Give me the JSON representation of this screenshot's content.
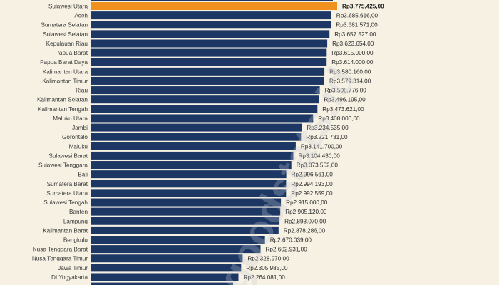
{
  "chart_data": {
    "type": "bar",
    "orientation": "horizontal",
    "title": "",
    "xlabel": "",
    "ylabel": "",
    "grid": false,
    "xlim": [
      0,
      3900000
    ],
    "bar_color": "#1c3764",
    "highlight_color": "#f0901e",
    "highlight_category": "Sulawesi Utara",
    "watermark": "goodstats.id",
    "categories": [
      "Sulawesi Utara",
      "Aceh",
      "Sumatera Selatan",
      "Sulawesi Selatan",
      "Kepulauan Riau",
      "Papua Barat",
      "Papua Barat Daya",
      "Kalimantan Utara",
      "Kalimantan Timur",
      "Riau",
      "Kalimantan Selatan",
      "Kalimantan Tengah",
      "Maluku Utara",
      "Jambi",
      "Gorontalo",
      "Maluku",
      "Sulawesi Barat",
      "Sulawesi Tenggara",
      "Bali",
      "Sumatera Barat",
      "Sumatera Utara",
      "Sulawesi Tengah",
      "Banten",
      "Lampung",
      "Kalimantan Barat",
      "Bengkulu",
      "Nusa Tenggara Barat",
      "Nusa Tenggara Timur",
      "Jawa Timur",
      "DI Yogyakarta"
    ],
    "values": [
      3775425,
      3685616,
      3681571,
      3657527,
      3623654,
      3615000,
      3614000,
      3580160,
      3579314,
      3508776,
      3496195,
      3473621,
      3408000,
      3234535,
      3221731,
      3141700,
      3104430,
      3073552,
      2996561,
      2994193,
      2992559,
      2915000,
      2905120,
      2893070,
      2878286,
      2670039,
      2602931,
      2328970,
      2305985,
      2264081
    ],
    "value_labels": [
      "Rp3.775.425,00",
      "Rp3.685.616,00",
      "Rp3.681.571,00",
      "Rp3.657.527,00",
      "Rp3.623.654,00",
      "Rp3.615.000,00",
      "Rp3.614.000,00",
      "Rp3.580.160,00",
      "Rp3.579.314,00",
      "Rp3.508.776,00",
      "Rp3.496.195,00",
      "Rp3.473.621,00",
      "Rp3.408.000,00",
      "Rp3.234.535,00",
      "Rp3.221.731,00",
      "Rp3.141.700,00",
      "Rp3.104.430,00",
      "Rp3.073.552,00",
      "Rp2.996.561,00",
      "Rp2.994.193,00",
      "Rp2.992.559,00",
      "Rp2.915.000,00",
      "Rp2.905.120,00",
      "Rp2.893.070,00",
      "Rp2.878.286,00",
      "Rp2.670.039,00",
      "Rp2.602.931,00",
      "Rp2.328.970,00",
      "Rp2.305.985,00",
      "Rp2.264.081,00"
    ]
  }
}
